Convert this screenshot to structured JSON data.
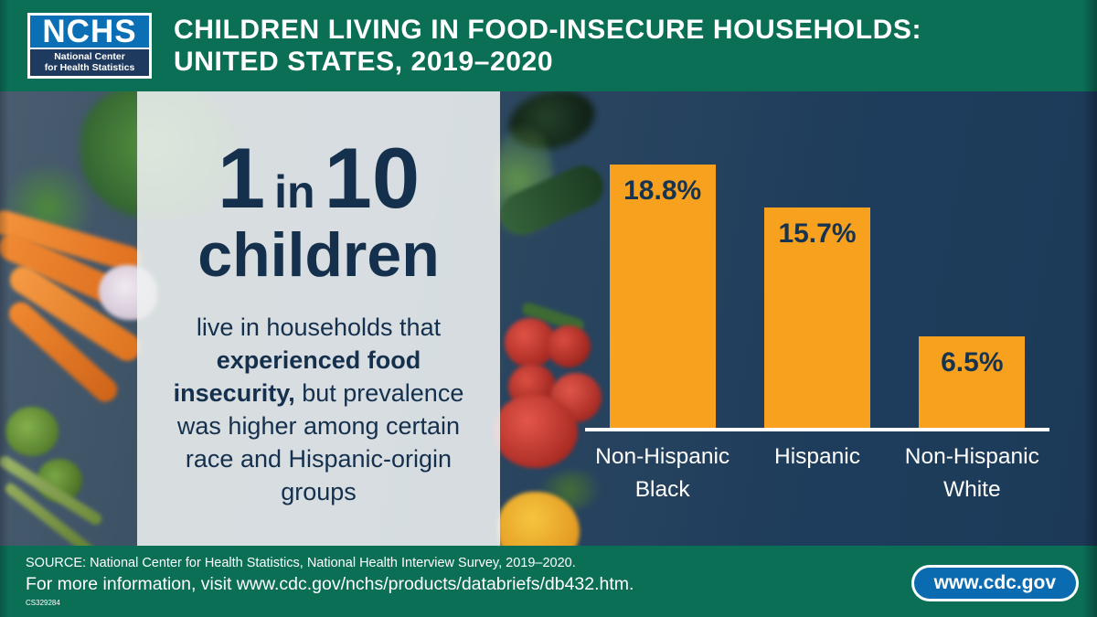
{
  "header": {
    "logo": {
      "acronym": "NCHS",
      "name_line1": "National Center",
      "name_line2": "for Health Statistics"
    },
    "title_line1": "CHILDREN LIVING IN FOOD-INSECURE HOUSEHOLDS:",
    "title_line2": "UNITED STATES, 2019–2020"
  },
  "stat_panel": {
    "big_1": "1",
    "big_in": "in",
    "big_10": "10",
    "big_word": "children",
    "desc_pre": "live in households that ",
    "desc_bold": "experienced food insecurity,",
    "desc_post": " but prevalence was higher among certain race and Hispanic-origin groups"
  },
  "chart_data": {
    "type": "bar",
    "categories": [
      "Non-Hispanic Black",
      "Hispanic",
      "Non-Hispanic White"
    ],
    "values": [
      18.8,
      15.7,
      6.5
    ],
    "value_labels": [
      "18.8%",
      "15.7%",
      "6.5%"
    ],
    "title": "",
    "xlabel": "",
    "ylabel": "",
    "ylim": [
      0,
      24
    ],
    "grid": false,
    "legend": false,
    "bar_color": "#F8A11E",
    "value_label_color": "#16344F",
    "category_label_color": "#FFFFFF",
    "axis_line_color": "#FFFFFF"
  },
  "footer": {
    "source_line": "SOURCE: National Center for Health Statistics, National Health Interview Survey, 2019–2020.",
    "info_line": "For more information, visit www.cdc.gov/nchs/products/databriefs/db432.htm.",
    "doc_number": "CS329284",
    "cdc_button_label": "www.cdc.gov"
  },
  "colors": {
    "header_green": "#0B6F56",
    "footer_green": "#0B6F56",
    "bar_orange": "#F8A11E",
    "navy_text": "#14304D",
    "chart_background_navy": "#1E3D5C",
    "cdc_button_blue": "#0A6BB0",
    "logo_blue": "#0A6FB4",
    "logo_navy": "#1E3A5F",
    "panel_overlay": "rgba(238,241,241,0.88)"
  }
}
